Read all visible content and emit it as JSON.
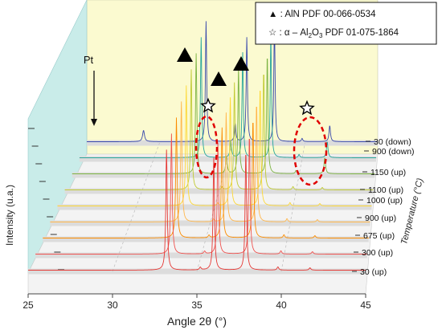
{
  "chart_data": {
    "type": "line",
    "title": "",
    "xlabel": "Angle 2θ (°)",
    "ylabel": "Intensity (u.a.)",
    "zlabel": "Temperature (°C)",
    "xlim": [
      25,
      45
    ],
    "xticks": [
      "25",
      "30",
      "35",
      "40",
      "45"
    ],
    "series": [
      {
        "name": "30 (up)",
        "color": "#e53935"
      },
      {
        "name": "300 (up)",
        "color": "#ef5350"
      },
      {
        "name": "675 (up)",
        "color": "#fb8c00"
      },
      {
        "name": "900 (up)",
        "color": "#ffb74d"
      },
      {
        "name": "1000 (up)",
        "color": "#fdd835"
      },
      {
        "name": "1100 (up)",
        "color": "#c0ca33"
      },
      {
        "name": "1150 (up)",
        "color": "#7cb342"
      },
      {
        "name": "900 (down)",
        "color": "#26a69a"
      },
      {
        "name": "30 (down)",
        "color": "#3949ab"
      }
    ],
    "peaks": {
      "AlN": [
        33.2,
        36.0,
        37.9
      ],
      "Al2O3": [
        35.2,
        41.7
      ],
      "Pt": [
        39.8
      ]
    },
    "legend": {
      "placement": "top-right",
      "entries": [
        {
          "marker": "filled-triangle",
          "label_prefix": "▲ : AlN PDF 00-066-0534"
        },
        {
          "marker": "open-star",
          "label_prefix": "☆ : α – Al",
          "sub": "2",
          "mid": "O",
          "sub2": "3",
          "label_suffix": " PDF 01-075-1864"
        }
      ]
    },
    "annotations": {
      "pt_label": "Pt",
      "triangle_marks": 3,
      "star_marks": 2
    }
  }
}
